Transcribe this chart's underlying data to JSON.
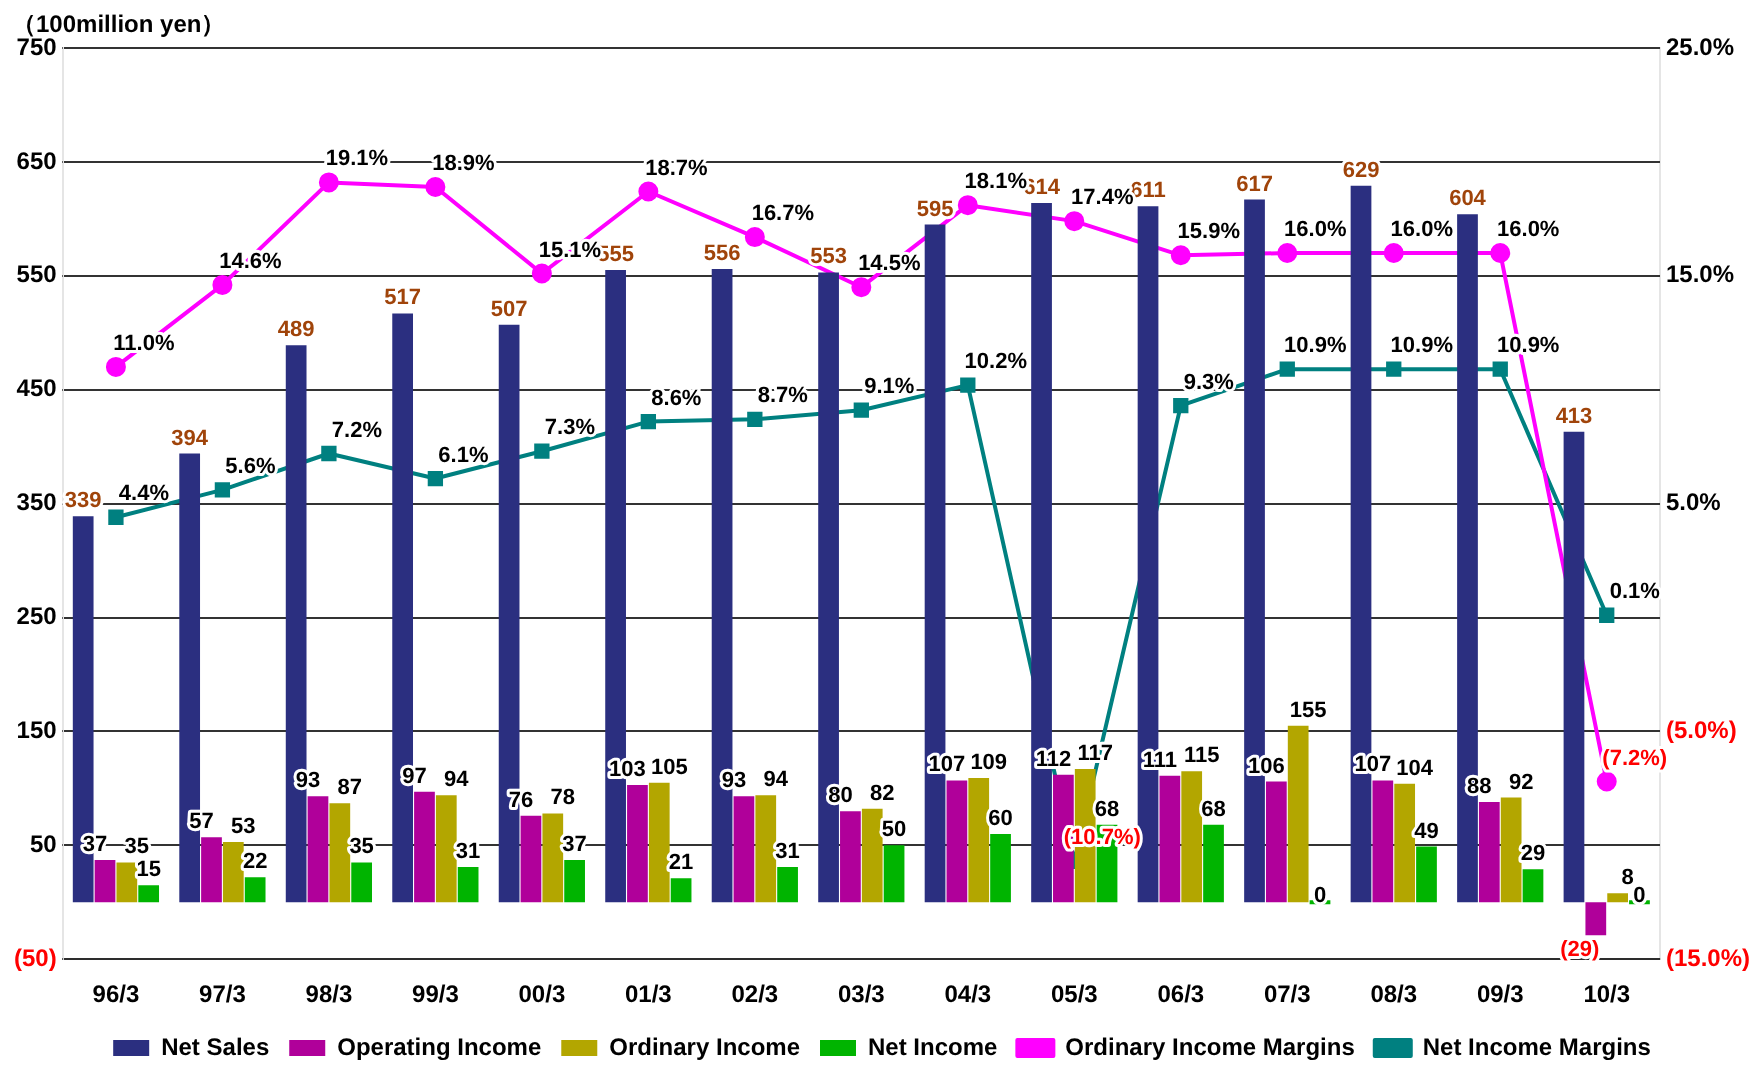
{
  "chart_data": {
    "type": "bar",
    "ylabel": "（100million yen）",
    "categories": [
      "96/3",
      "97/3",
      "98/3",
      "99/3",
      "00/3",
      "01/3",
      "02/3",
      "03/3",
      "04/3",
      "05/3",
      "06/3",
      "07/3",
      "08/3",
      "09/3",
      "10/3"
    ],
    "series": [
      {
        "name": "Net Sales",
        "color": "#2b2f80",
        "values": [
          339,
          394,
          489,
          517,
          507,
          555,
          556,
          553,
          595,
          614,
          611,
          617,
          629,
          604,
          413
        ],
        "value_labels": [
          "339",
          "394",
          "489",
          "517",
          "507",
          "555",
          "556",
          "553",
          "595",
          "614",
          "611",
          "617",
          "629",
          "604",
          "413"
        ]
      },
      {
        "name": "Operating Income",
        "color": "#b0009a",
        "values": [
          37,
          57,
          93,
          97,
          76,
          103,
          93,
          80,
          107,
          112,
          111,
          106,
          107,
          88,
          -29
        ],
        "value_labels": [
          "37",
          "57",
          "93",
          "97",
          "76",
          "103",
          "93",
          "80",
          "107",
          "112",
          "111",
          "106",
          "107",
          "88",
          "(29)"
        ]
      },
      {
        "name": "Ordinary Income",
        "color": "#b3a600",
        "values": [
          35,
          53,
          87,
          94,
          78,
          105,
          94,
          82,
          109,
          117,
          115,
          155,
          104,
          92,
          8
        ],
        "value_labels": [
          "35",
          "53",
          "87",
          "94",
          "78",
          "105",
          "94",
          "82",
          "109",
          "117",
          "115",
          "155",
          "104",
          "92",
          "8"
        ]
      },
      {
        "name": "Net Income",
        "color": "#00b400",
        "values": [
          15,
          22,
          35,
          31,
          37,
          21,
          31,
          50,
          60,
          68,
          68,
          0,
          49,
          29,
          0
        ],
        "value_labels": [
          "15",
          "22",
          "35",
          "31",
          "37",
          "21",
          "31",
          "50",
          "60",
          "68",
          "68",
          "0",
          "49",
          "29",
          "0"
        ]
      },
      {
        "name": "Ordinary Income Margins",
        "type": "line",
        "axis": "y2",
        "marker": "circle",
        "color": "#ff00ff",
        "values": [
          11.0,
          14.6,
          19.1,
          18.9,
          15.1,
          18.7,
          16.7,
          14.5,
          18.1,
          17.4,
          15.9,
          16.0,
          16.0,
          16.0,
          -7.2
        ],
        "value_labels": [
          "11.0%",
          "14.6%",
          "19.1%",
          "18.9%",
          "15.1%",
          "18.7%",
          "16.7%",
          "14.5%",
          "18.1%",
          "17.4%",
          "15.9%",
          "16.0%",
          "16.0%",
          "16.0%",
          "(7.2%)"
        ]
      },
      {
        "name": "Net Income Margins",
        "type": "line",
        "axis": "y2",
        "marker": "square",
        "color": "#008080",
        "values": [
          4.4,
          5.6,
          7.2,
          6.1,
          7.3,
          8.6,
          8.7,
          9.1,
          10.2,
          -10.7,
          9.3,
          10.9,
          10.9,
          10.9,
          0.1
        ],
        "value_labels": [
          "4.4%",
          "5.6%",
          "7.2%",
          "6.1%",
          "7.3%",
          "8.6%",
          "8.7%",
          "9.1%",
          "10.2%",
          "(10.7%)",
          "9.3%",
          "10.9%",
          "10.9%",
          "10.9%",
          "0.1%"
        ]
      }
    ],
    "ylim": [
      -50,
      750
    ],
    "yticks": [
      {
        "value": -50,
        "label": "(50)"
      },
      50,
      150,
      250,
      350,
      450,
      550,
      650,
      750
    ],
    "y2lim": [
      -15,
      25
    ],
    "y2ticks": [
      {
        "value": -15,
        "label": "(15.0%)"
      },
      {
        "value": -5,
        "label": "(5.0%)"
      },
      {
        "value": 5,
        "label": "5.0%"
      },
      {
        "value": 15,
        "label": "15.0%"
      },
      {
        "value": 25,
        "label": "25.0%"
      }
    ],
    "grid": "y",
    "legend": "bottom",
    "line_style": "solid"
  }
}
